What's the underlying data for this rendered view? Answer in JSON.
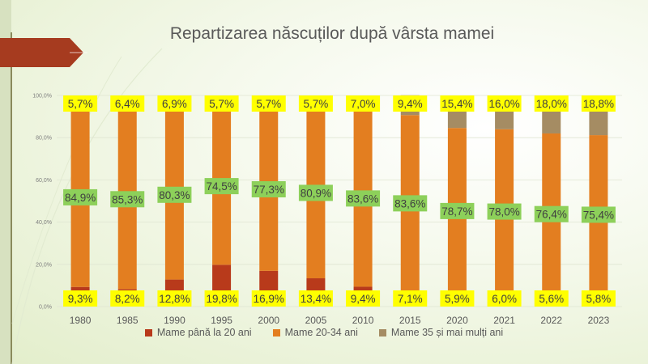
{
  "colors": {
    "under20": "#b83a1b",
    "age20_34": "#e37e20",
    "over35": "#a58c63",
    "label_yellow": "#ffff00",
    "label_green": "#8dd05a"
  },
  "chart_data": {
    "type": "bar",
    "stacked": true,
    "title": "Repartizarea născuților după vârsta mamei",
    "xlabel": "",
    "ylabel": "",
    "ylim": [
      0,
      100
    ],
    "y_ticks": [
      "0,0%",
      "20,0%",
      "40,0%",
      "60,0%",
      "80,0%",
      "100,0%"
    ],
    "categories": [
      "1980",
      "1985",
      "1990",
      "1995",
      "2000",
      "2005",
      "2010",
      "2015",
      "2020",
      "2021",
      "2022",
      "2023"
    ],
    "legend_position": "bottom",
    "grid": true,
    "series": [
      {
        "name": "Mame până la 20 ani",
        "color": "#b83a1b",
        "values": [
          9.3,
          8.2,
          12.8,
          19.8,
          16.9,
          13.4,
          9.4,
          7.1,
          5.9,
          6.0,
          5.6,
          5.8
        ],
        "labels": [
          "9,3%",
          "8,2%",
          "12,8%",
          "19,8%",
          "16,9%",
          "13,4%",
          "9,4%",
          "7,1%",
          "5,9%",
          "6,0%",
          "5,6%",
          "5,8%"
        ]
      },
      {
        "name": "Mame 20-34 ani",
        "color": "#e37e20",
        "values": [
          84.9,
          85.3,
          80.3,
          74.5,
          77.3,
          80.9,
          83.6,
          83.6,
          78.7,
          78.0,
          76.4,
          75.4
        ],
        "labels": [
          "84,9%",
          "85,3%",
          "80,3%",
          "74,5%",
          "77,3%",
          "80,9%",
          "83,6%",
          "83,6%",
          "78,7%",
          "78,0%",
          "76,4%",
          "75,4%"
        ]
      },
      {
        "name": "Mame 35 și mai mulți ani",
        "color": "#a58c63",
        "values": [
          5.7,
          6.4,
          6.9,
          5.7,
          5.7,
          5.7,
          7.0,
          9.4,
          15.4,
          16.0,
          18.0,
          18.8
        ],
        "labels": [
          "5,7%",
          "6,4%",
          "6,9%",
          "5,7%",
          "5,7%",
          "5,7%",
          "7,0%",
          "9,4%",
          "15,4%",
          "16,0%",
          "18,0%",
          "18,8%"
        ]
      }
    ]
  }
}
